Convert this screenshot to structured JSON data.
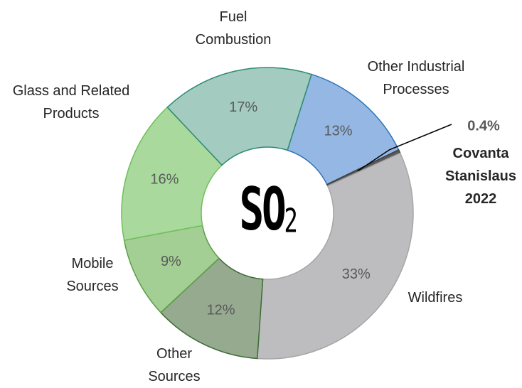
{
  "chart_data": {
    "type": "donut",
    "categories": [
      "Other Industrial Processes",
      "Covanta Stanislaus 2022",
      "Wildfires",
      "Other Sources",
      "Mobile Sources",
      "Glass and Related Products",
      "Fuel Combustion"
    ],
    "values": [
      13,
      0.4,
      33,
      12,
      9,
      16,
      17
    ],
    "value_labels": [
      "13%",
      "0.4%",
      "33%",
      "12%",
      "9%",
      "16%",
      "17%"
    ],
    "colors": [
      "#95b7e4",
      "#595959",
      "#bdbdc0",
      "#96aa90",
      "#a4cf94",
      "#a9d99c",
      "#a3cbbf"
    ],
    "center_text": {
      "main": "SO",
      "sub": "2"
    }
  }
}
